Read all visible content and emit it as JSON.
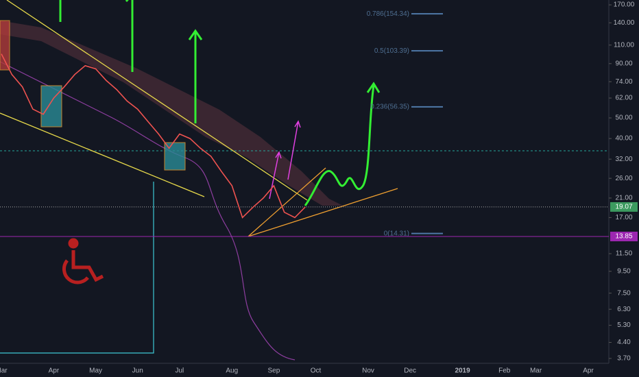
{
  "chart_data": {
    "type": "line",
    "log_scale": true,
    "color": "#ef5350",
    "categories": [
      "Mar",
      null,
      null,
      null,
      null,
      "Apr",
      null,
      null,
      null,
      "May",
      null,
      null,
      null,
      "Jun",
      null,
      null,
      null,
      "Jul",
      null,
      null,
      null,
      null,
      "Aug",
      null,
      null,
      null,
      "Sep",
      null,
      null,
      null,
      "Oct",
      null,
      null,
      null,
      null,
      "Nov",
      null,
      null,
      null,
      "Dec",
      null,
      null,
      null,
      null,
      "2019",
      null,
      null,
      null,
      "Feb",
      null,
      null,
      "Mar",
      null,
      null,
      null,
      null,
      "Apr"
    ],
    "values": [
      100,
      80,
      70,
      55,
      52,
      62,
      70,
      80,
      88,
      85,
      75,
      68,
      60,
      55,
      48,
      42,
      36,
      42,
      40,
      36,
      33,
      28,
      24,
      17,
      19,
      21,
      24,
      18,
      17,
      19.07,
      null,
      null,
      null,
      null,
      null,
      null,
      null,
      null,
      null,
      null,
      null,
      null,
      null,
      null,
      null,
      null,
      null,
      null,
      null,
      null,
      null,
      null,
      null,
      null,
      null,
      null,
      null
    ],
    "ylim": [
      3.51,
      179.2
    ],
    "yticks": [
      {
        "value": 170,
        "label": "170.00"
      },
      {
        "value": 140,
        "label": "140.00"
      },
      {
        "value": 110,
        "label": "110.00"
      },
      {
        "value": 90,
        "label": "90.00"
      },
      {
        "value": 74,
        "label": "74.00"
      },
      {
        "value": 62,
        "label": "62.00"
      },
      {
        "value": 50,
        "label": "50.00"
      },
      {
        "value": 40,
        "label": "40.00"
      },
      {
        "value": 32,
        "label": "32.00"
      },
      {
        "value": 26,
        "label": "26.00"
      },
      {
        "value": 21,
        "label": "21.00"
      },
      {
        "value": 17,
        "label": "17.00"
      },
      {
        "value": 11.5,
        "label": "11.50"
      },
      {
        "value": 9.5,
        "label": "9.50"
      },
      {
        "value": 7.5,
        "label": "7.50"
      },
      {
        "value": 6.3,
        "label": "6.30"
      },
      {
        "value": 5.3,
        "label": "5.30"
      },
      {
        "value": 4.4,
        "label": "4.40"
      },
      {
        "value": 3.7,
        "label": "3.70"
      }
    ],
    "price_tags": [
      {
        "value": 19.07,
        "color": "#3c9a5f"
      },
      {
        "value": 13.85,
        "color": "#9c27b0"
      }
    ],
    "fib_levels": [
      {
        "label": "0.786(154.34)",
        "value": 154.34
      },
      {
        "label": "0.5(103.39)",
        "value": 103.39
      },
      {
        "label": "0.236(56.35)",
        "value": 56.35
      },
      {
        "label": "0(14.31)",
        "value": 14.31
      }
    ]
  }
}
